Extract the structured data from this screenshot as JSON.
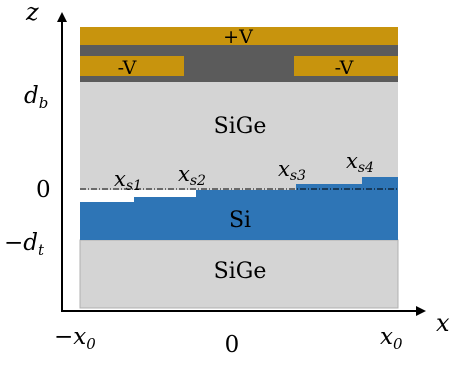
{
  "diagram": {
    "axes": {
      "x_label": "x",
      "z_label": "z",
      "x_ticks": {
        "left": "−x",
        "left_sub": "0",
        "center": "0",
        "right": "x",
        "right_sub": "0"
      },
      "z_ticks": {
        "db": "d",
        "db_sub": "b",
        "zero": "0",
        "dt": "−d",
        "dt_sub": "t"
      }
    },
    "layers": {
      "top_gate_label": "+V",
      "left_gate_label": "-V",
      "right_gate_label": "-V",
      "upper_barrier_label": "SiGe",
      "well_label": "Si",
      "lower_barrier_label": "SiGe"
    },
    "steps": [
      {
        "symbol": "x",
        "sub": "s1"
      },
      {
        "symbol": "x",
        "sub": "s2"
      },
      {
        "symbol": "x",
        "sub": "s3"
      },
      {
        "symbol": "x",
        "sub": "s4"
      }
    ],
    "colors": {
      "gold": "#C8940D",
      "dark_gray": "#5B5B5B",
      "sige": "#D4D4D4",
      "si": "#2E75B6",
      "axis": "#000000"
    }
  }
}
